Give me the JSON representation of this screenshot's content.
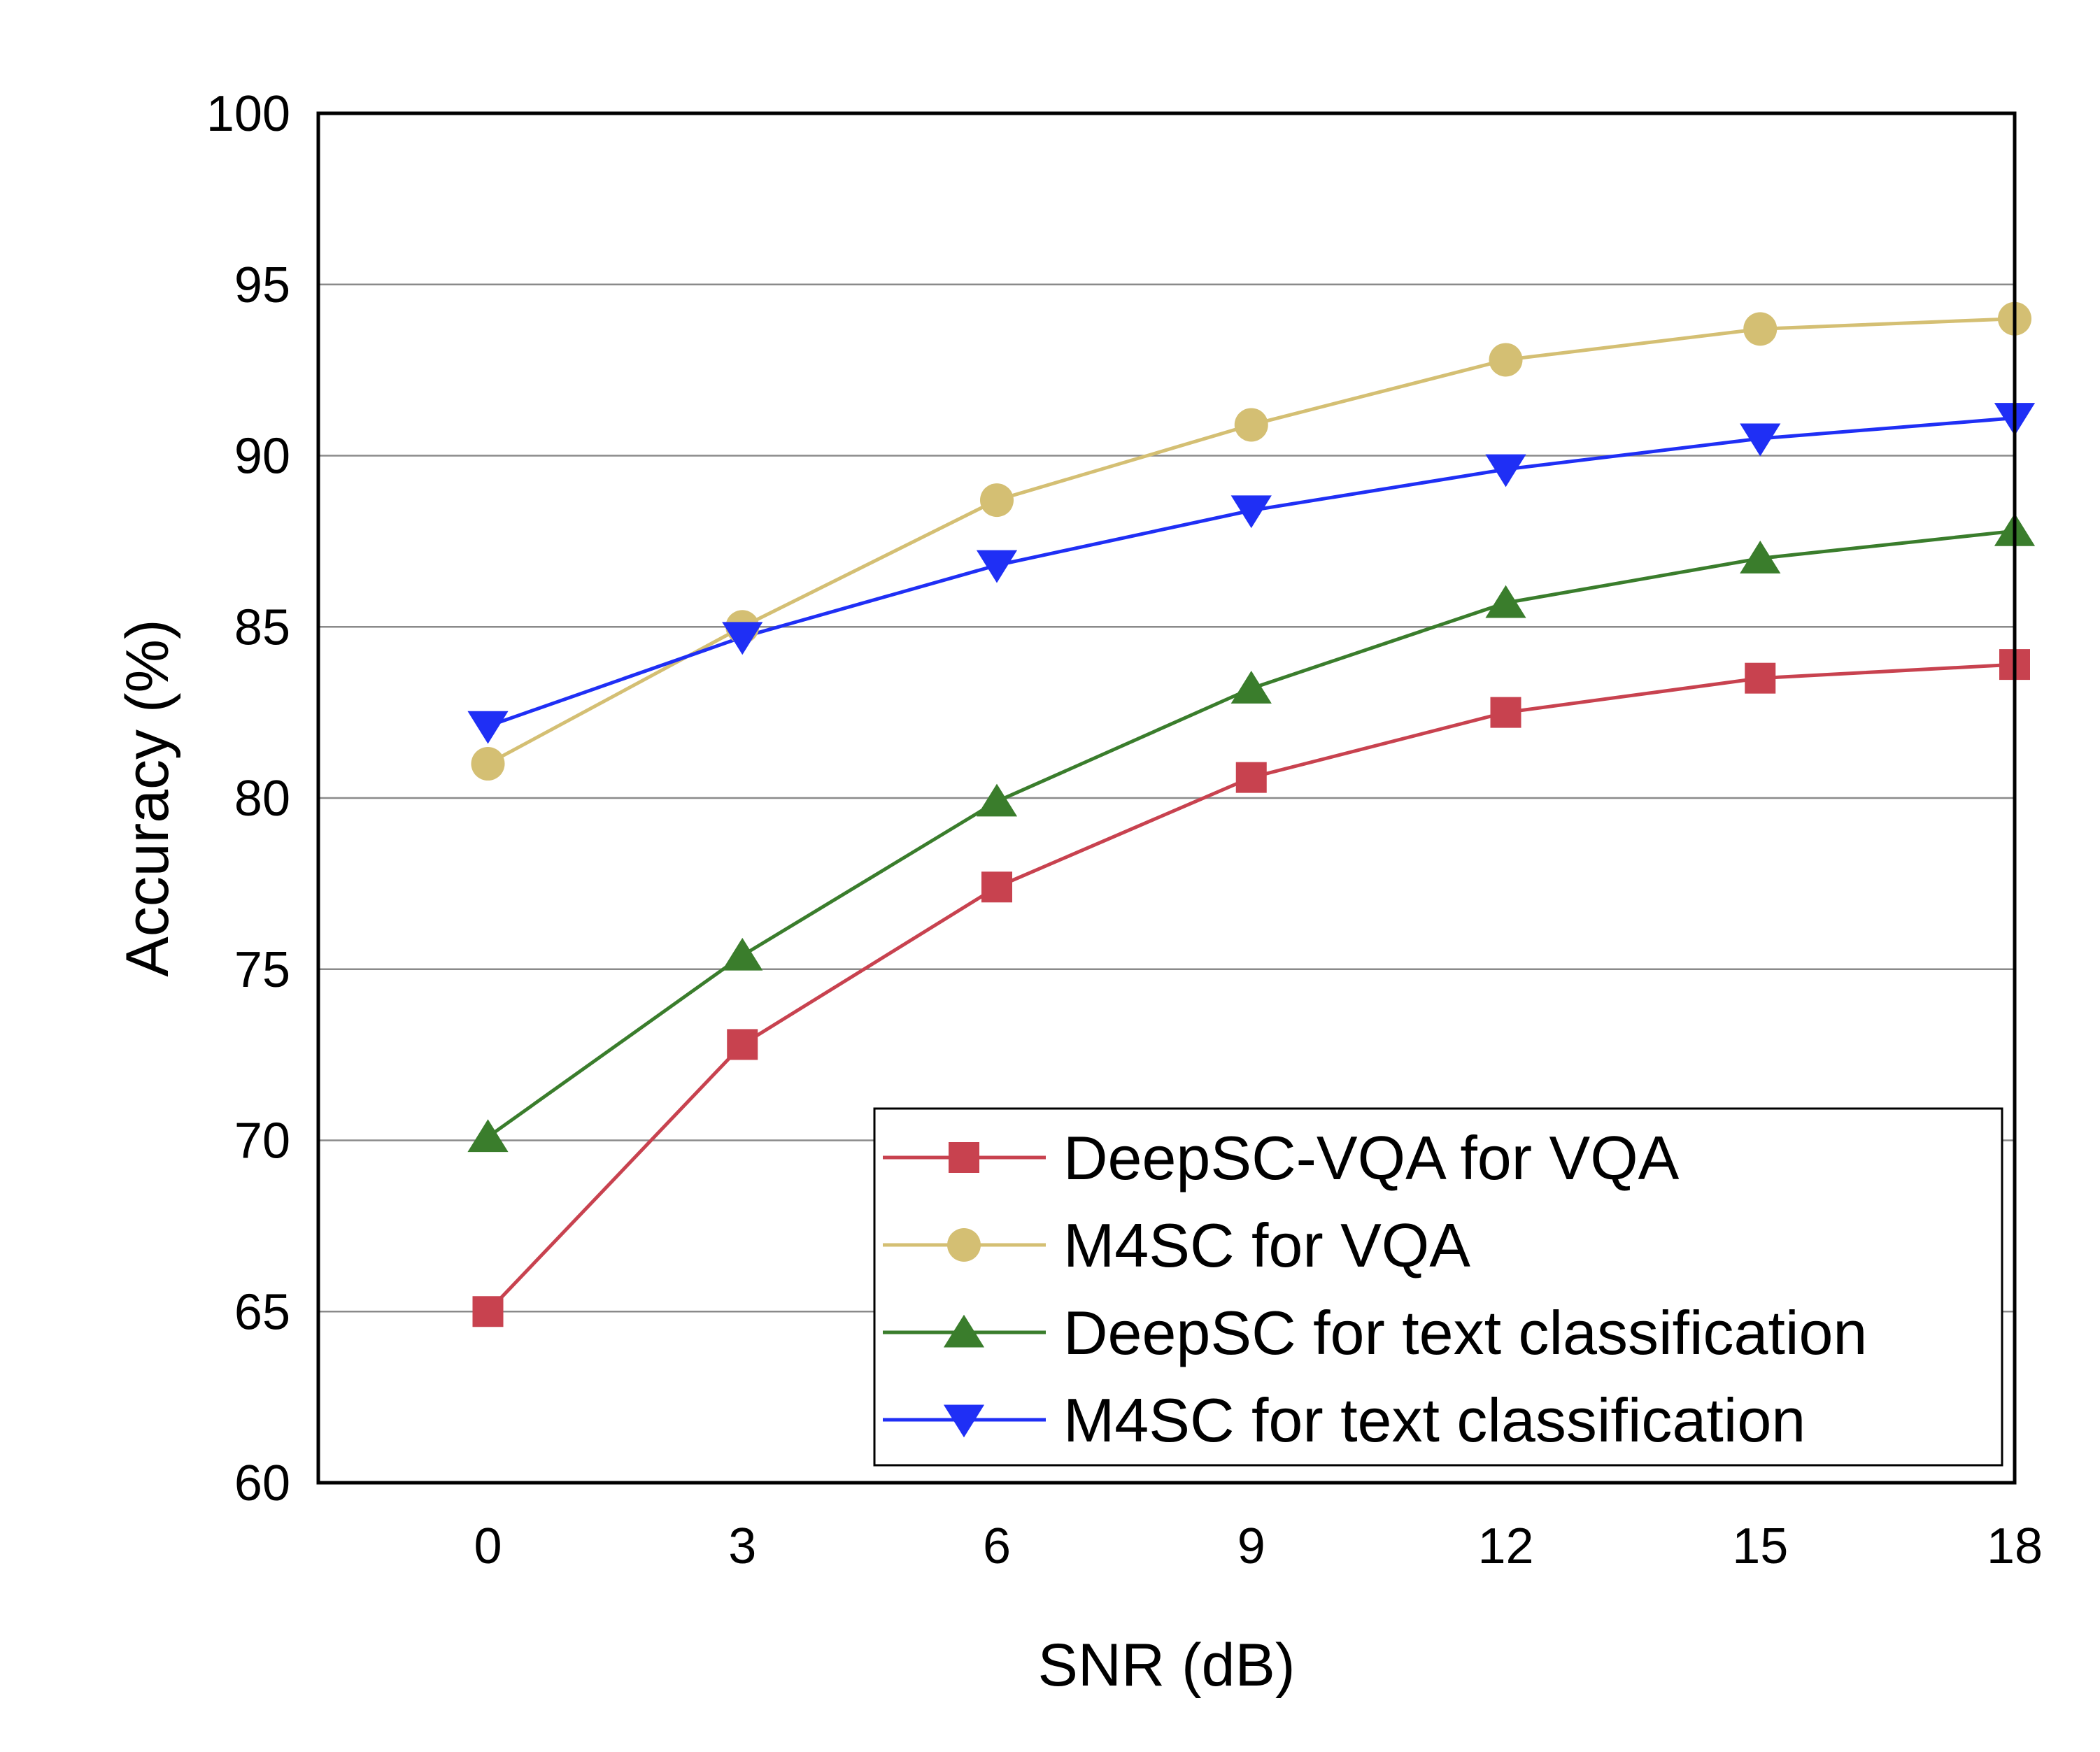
{
  "chart_data": {
    "type": "line",
    "title": "",
    "xlabel": "SNR (dB)",
    "ylabel": "Accuracy (%)",
    "x": [
      0,
      3,
      6,
      9,
      12,
      15,
      18
    ],
    "xlim": [
      -2,
      18
    ],
    "ylim": [
      60,
      100
    ],
    "xticks": [
      0,
      3,
      6,
      9,
      12,
      15,
      18
    ],
    "yticks": [
      60,
      65,
      70,
      75,
      80,
      85,
      90,
      95,
      100
    ],
    "grid": "horizontal",
    "legend_position": "bottom-right",
    "series": [
      {
        "name": "DeepSC-VQA for VQA",
        "color": "#c8424f",
        "marker": "square",
        "values": [
          65.0,
          72.8,
          77.4,
          80.6,
          82.5,
          83.5,
          83.9
        ]
      },
      {
        "name": "M4SC for VQA",
        "color": "#d4bf73",
        "marker": "circle",
        "values": [
          81.0,
          85.0,
          88.7,
          90.9,
          92.8,
          93.7,
          94.0
        ]
      },
      {
        "name": "DeepSC for text classification",
        "color": "#3a7d2c",
        "marker": "triangle-up",
        "values": [
          70.1,
          75.4,
          79.9,
          83.2,
          85.7,
          87.0,
          87.8
        ]
      },
      {
        "name": "M4SC for text classification",
        "color": "#1f2ff5",
        "marker": "triangle-down",
        "values": [
          82.1,
          84.7,
          86.8,
          88.4,
          89.6,
          90.5,
          91.1
        ]
      }
    ]
  }
}
